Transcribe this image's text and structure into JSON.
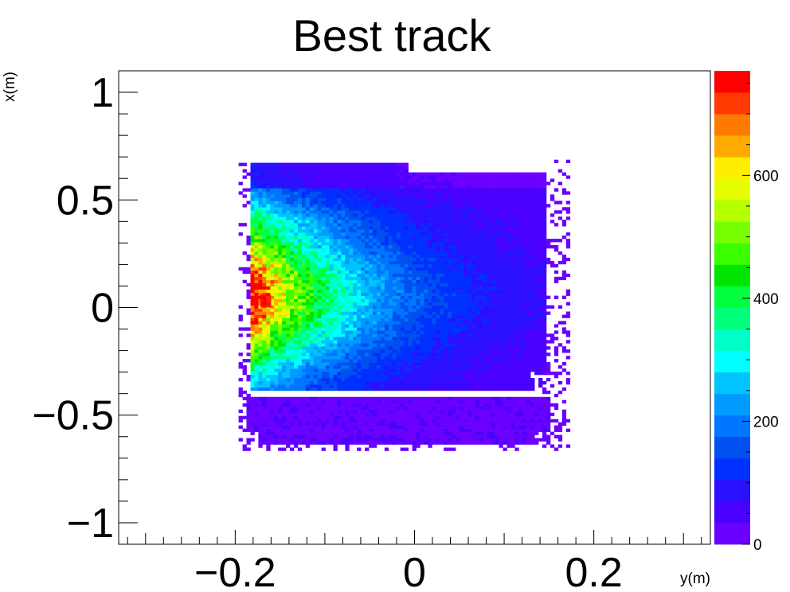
{
  "chart_data": {
    "type": "heatmap",
    "title": "Best track",
    "xlabel": "y(m)",
    "ylabel": "x(m)",
    "xlim": [
      -0.33,
      0.33
    ],
    "ylim": [
      -1.1,
      1.1
    ],
    "x_ticks": [
      -0.2,
      0,
      0.2
    ],
    "x_tick_labels": [
      "−0.2",
      "0",
      "0.2"
    ],
    "y_ticks": [
      -1,
      -0.5,
      0,
      0.5,
      1
    ],
    "y_tick_labels": [
      "−1",
      "−0.5",
      "0",
      "0.5",
      "1"
    ],
    "color_scale": {
      "min": 0,
      "max": 770,
      "ticks": [
        0,
        200,
        400,
        600
      ],
      "tick_labels": [
        "0",
        "200",
        "400",
        "600"
      ],
      "palette": [
        "#6a00ff",
        "#4a00ff",
        "#2a10ff",
        "#0030ff",
        "#0050f0",
        "#0075ff",
        "#009bff",
        "#00c3ff",
        "#00ffff",
        "#00ffc8",
        "#00ff7a",
        "#00ff3c",
        "#00e600",
        "#3cff00",
        "#78ff00",
        "#b4ff00",
        "#e6ff00",
        "#ffee00",
        "#ffaa00",
        "#ff7a00",
        "#ff3a00",
        "#ff0000"
      ]
    },
    "distribution": {
      "description_values": "counts per bin, peak ~770 near y=-0.16, x=0.03",
      "peak": {
        "y": -0.16,
        "x": 0.03,
        "value": 770
      },
      "main_region": {
        "y_range": [
          -0.185,
          0.145
        ],
        "x_range": [
          -0.4,
          0.67
        ]
      },
      "lower_band": {
        "y_range": [
          -0.19,
          0.15
        ],
        "x_range": [
          -0.65,
          -0.42
        ]
      },
      "grid_on": false,
      "legend": "none"
    }
  }
}
